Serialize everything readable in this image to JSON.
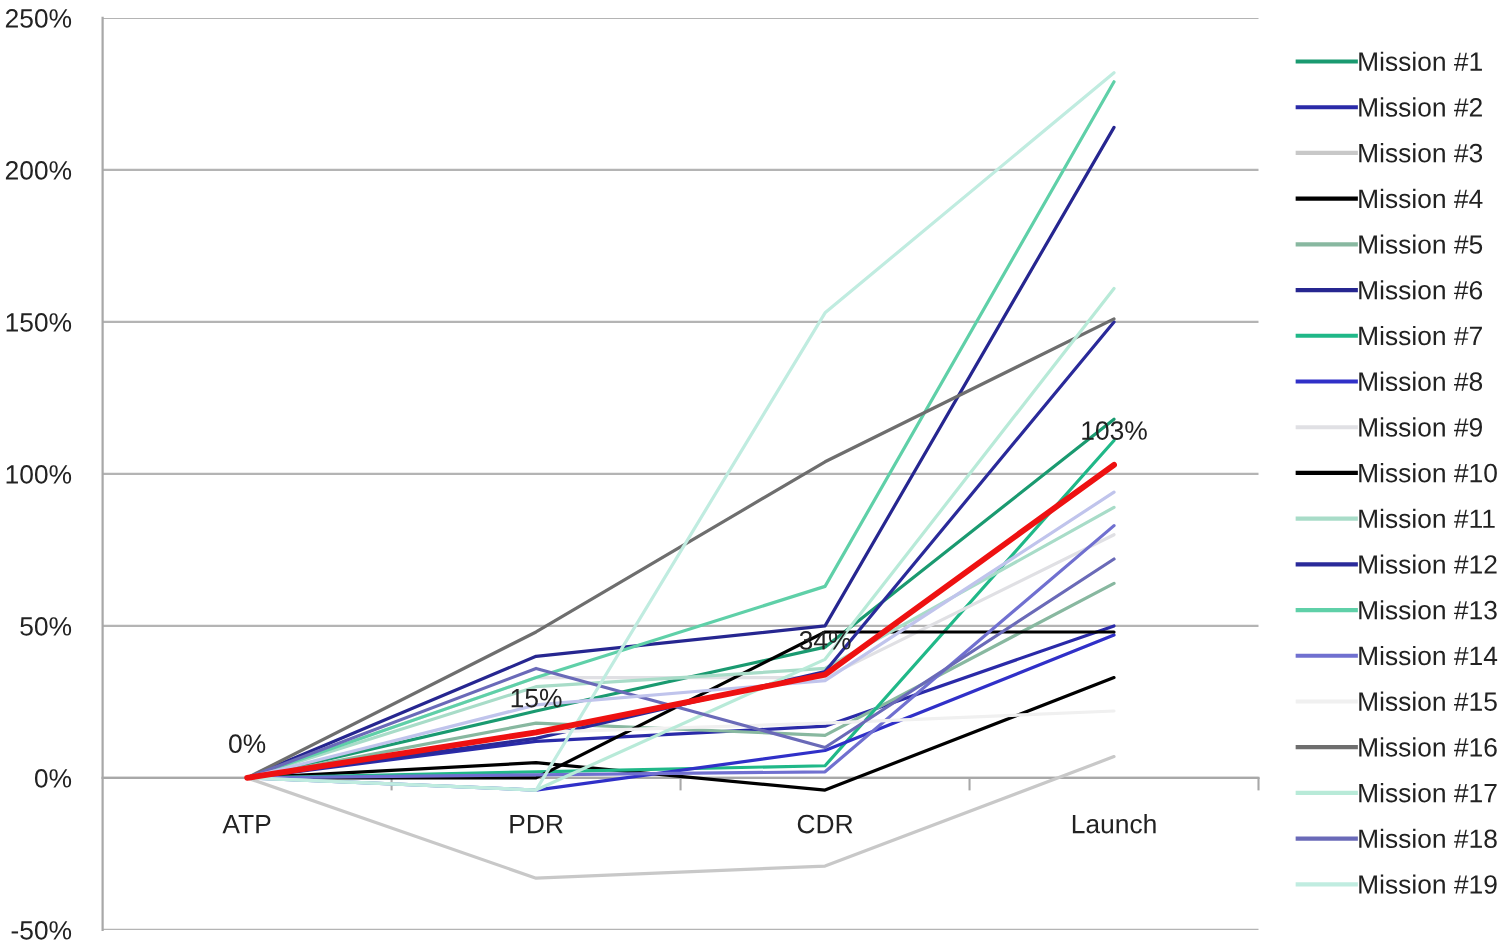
{
  "chart_data": {
    "type": "line",
    "categories": [
      "ATP",
      "PDR",
      "CDR",
      "Launch"
    ],
    "ylim": [
      -50,
      250
    ],
    "yticks": [
      {
        "value": -50,
        "label": "-50%"
      },
      {
        "value": 0,
        "label": "0%"
      },
      {
        "value": 50,
        "label": "50%"
      },
      {
        "value": 100,
        "label": "100%"
      },
      {
        "value": 150,
        "label": "150%"
      },
      {
        "value": 200,
        "label": "200%"
      },
      {
        "value": 250,
        "label": "250%"
      }
    ],
    "grid": "y",
    "legend": "right",
    "line_style": "solid",
    "series": [
      {
        "name": "Mission #1",
        "color": "#1a9a70",
        "values": [
          0,
          22,
          43,
          118
        ]
      },
      {
        "name": "Mission #2",
        "color": "#2a2aa8",
        "values": [
          0,
          12,
          17,
          50
        ]
      },
      {
        "name": "Mission #3",
        "color": "#c8c8c8",
        "values": [
          0,
          -33,
          -29,
          7
        ]
      },
      {
        "name": "Mission #4",
        "color": "#000000",
        "values": [
          0,
          5,
          -4,
          33
        ]
      },
      {
        "name": "Mission #5",
        "color": "#88b8a0",
        "values": [
          0,
          18,
          14,
          64
        ]
      },
      {
        "name": "Mission #6",
        "color": "#262690",
        "values": [
          0,
          40,
          50,
          214
        ]
      },
      {
        "name": "Mission #7",
        "color": "#20b888",
        "values": [
          0,
          2,
          4,
          111
        ]
      },
      {
        "name": "Mission #8",
        "color": "#3030c8",
        "values": [
          0,
          -4,
          9,
          47
        ]
      },
      {
        "name": "Mission #9",
        "color": "#e0e0e4",
        "values": [
          0,
          33,
          33,
          80
        ]
      },
      {
        "name": "Mission #10",
        "color": "#000000",
        "values": [
          0,
          0,
          48,
          48
        ]
      },
      {
        "name": "Mission #11",
        "color": "#a8dcc8",
        "values": [
          0,
          30,
          36,
          89
        ]
      },
      {
        "name": "Mission #12",
        "color": "#2a2a9a",
        "values": [
          0,
          13,
          35,
          150
        ]
      },
      {
        "name": "Mission #13",
        "color": "#5fd0a8",
        "values": [
          0,
          33,
          63,
          229
        ]
      },
      {
        "name": "Mission #14",
        "color": "#7070d0",
        "values": [
          0,
          1,
          2,
          83
        ]
      },
      {
        "name": "Mission #15",
        "color": "#f0f0f0",
        "values": [
          0,
          15,
          18,
          22
        ]
      },
      {
        "name": "Mission #16",
        "color": "#6e6e6e",
        "values": [
          0,
          48,
          104,
          151
        ]
      },
      {
        "name": "Mission #17",
        "color": "#b8ead8",
        "values": [
          0,
          -4,
          39,
          161
        ]
      },
      {
        "name": "Mission #18",
        "color": "#6a6ab8",
        "values": [
          0,
          36,
          10,
          72
        ]
      },
      {
        "name": "Mission #19",
        "color": "#c0ece0",
        "values": [
          0,
          -4,
          153,
          232
        ]
      },
      {
        "color": "#c0c4ec",
        "values": [
          0,
          24,
          32,
          94
        ]
      },
      {
        "color": "#ee1111",
        "values": [
          0,
          15,
          34,
          103
        ],
        "value_labels": [
          "0%",
          "15%",
          "34%",
          "103%"
        ]
      }
    ]
  }
}
